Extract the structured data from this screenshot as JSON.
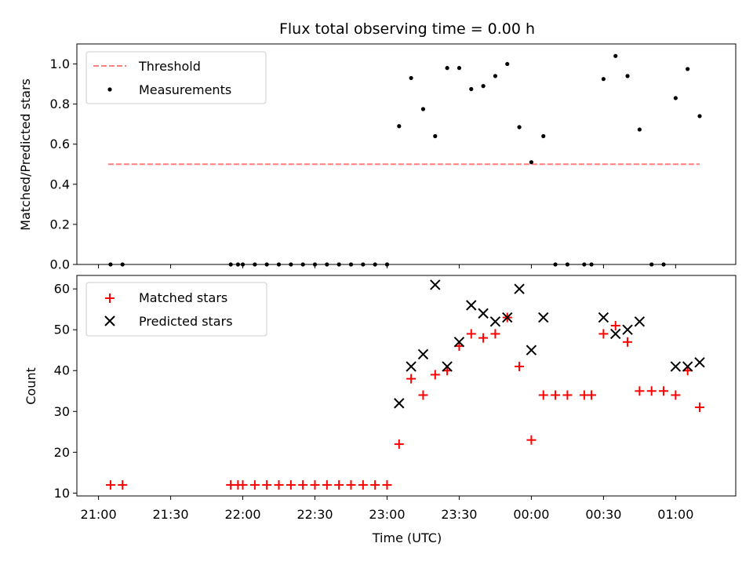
{
  "title": "Flux total observing time = 0.00 h",
  "xlabel": "Time (UTC)",
  "chart_data": [
    {
      "type": "scatter",
      "ylabel": "Matched/Predicted stars",
      "ylim": [
        0,
        1.1
      ],
      "yticks": [
        "0.0",
        "0.2",
        "0.4",
        "0.6",
        "0.8",
        "1.0"
      ],
      "xlim": [
        "20:51",
        "01:25"
      ],
      "legend": {
        "placement": "top-left",
        "entries": [
          "Threshold",
          "Measurements"
        ]
      },
      "threshold": {
        "name": "Threshold",
        "value": 0.5,
        "x_start": "21:04",
        "x_end": "01:10",
        "color": "#ff7f7f"
      },
      "series": [
        {
          "name": "Measurements",
          "color": "#000000",
          "points": [
            [
              "21:05",
              0
            ],
            [
              "21:10",
              0
            ],
            [
              "21:55",
              0
            ],
            [
              "21:58",
              0
            ],
            [
              "22:00",
              0
            ],
            [
              "22:05",
              0
            ],
            [
              "22:10",
              0
            ],
            [
              "22:15",
              0
            ],
            [
              "22:20",
              0
            ],
            [
              "22:25",
              0
            ],
            [
              "22:30",
              0
            ],
            [
              "22:35",
              0
            ],
            [
              "22:40",
              0
            ],
            [
              "22:45",
              0
            ],
            [
              "22:50",
              0
            ],
            [
              "22:55",
              0
            ],
            [
              "23:00",
              0
            ],
            [
              "23:05",
              0.69
            ],
            [
              "23:10",
              0.93
            ],
            [
              "23:15",
              0.775
            ],
            [
              "23:20",
              0.64
            ],
            [
              "23:25",
              0.98
            ],
            [
              "23:30",
              0.98
            ],
            [
              "23:35",
              0.875
            ],
            [
              "23:40",
              0.89
            ],
            [
              "23:45",
              0.94
            ],
            [
              "23:50",
              1.0
            ],
            [
              "23:55",
              0.685
            ],
            [
              "00:00",
              0.51
            ],
            [
              "00:05",
              0.64
            ],
            [
              "00:10",
              0
            ],
            [
              "00:15",
              0
            ],
            [
              "00:22",
              0
            ],
            [
              "00:25",
              0
            ],
            [
              "00:30",
              0.925
            ],
            [
              "00:35",
              1.04
            ],
            [
              "00:40",
              0.94
            ],
            [
              "00:45",
              0.673
            ],
            [
              "00:50",
              0
            ],
            [
              "00:55",
              0
            ],
            [
              "01:00",
              0.83
            ],
            [
              "01:05",
              0.975
            ],
            [
              "01:10",
              0.74
            ]
          ]
        }
      ]
    },
    {
      "type": "scatter",
      "ylabel": "Count",
      "ylim": [
        9.3,
        63.3
      ],
      "yticks": [
        "10",
        "20",
        "30",
        "40",
        "50",
        "60"
      ],
      "xticks": [
        "21:00",
        "21:30",
        "22:00",
        "22:30",
        "23:00",
        "23:30",
        "00:00",
        "00:30",
        "01:00"
      ],
      "xlim": [
        "20:51",
        "01:25"
      ],
      "legend": {
        "placement": "top-left",
        "entries": [
          "Matched stars",
          "Predicted stars"
        ]
      },
      "series": [
        {
          "name": "Matched stars",
          "marker": "plus",
          "color": "#ff0000",
          "points": [
            [
              "21:05",
              12
            ],
            [
              "21:10",
              12
            ],
            [
              "21:55",
              12
            ],
            [
              "21:58",
              12
            ],
            [
              "22:00",
              12
            ],
            [
              "22:05",
              12
            ],
            [
              "22:10",
              12
            ],
            [
              "22:15",
              12
            ],
            [
              "22:20",
              12
            ],
            [
              "22:25",
              12
            ],
            [
              "22:30",
              12
            ],
            [
              "22:35",
              12
            ],
            [
              "22:40",
              12
            ],
            [
              "22:45",
              12
            ],
            [
              "22:50",
              12
            ],
            [
              "22:55",
              12
            ],
            [
              "23:00",
              12
            ],
            [
              "23:05",
              22
            ],
            [
              "23:10",
              38
            ],
            [
              "23:15",
              34
            ],
            [
              "23:20",
              39
            ],
            [
              "23:25",
              40
            ],
            [
              "23:30",
              46
            ],
            [
              "23:35",
              49
            ],
            [
              "23:40",
              48
            ],
            [
              "23:45",
              49
            ],
            [
              "23:50",
              53
            ],
            [
              "23:55",
              41
            ],
            [
              "00:00",
              23
            ],
            [
              "00:05",
              34
            ],
            [
              "00:10",
              34
            ],
            [
              "00:15",
              34
            ],
            [
              "00:22",
              34
            ],
            [
              "00:25",
              34
            ],
            [
              "00:30",
              49
            ],
            [
              "00:35",
              51
            ],
            [
              "00:40",
              47
            ],
            [
              "00:45",
              35
            ],
            [
              "00:50",
              35
            ],
            [
              "00:55",
              35
            ],
            [
              "01:00",
              34
            ],
            [
              "01:05",
              40
            ],
            [
              "01:10",
              31
            ]
          ]
        },
        {
          "name": "Predicted stars",
          "marker": "x",
          "color": "#000000",
          "points": [
            [
              "23:05",
              32
            ],
            [
              "23:10",
              41
            ],
            [
              "23:15",
              44
            ],
            [
              "23:20",
              61
            ],
            [
              "23:25",
              41
            ],
            [
              "23:30",
              47
            ],
            [
              "23:35",
              56
            ],
            [
              "23:40",
              54
            ],
            [
              "23:45",
              52
            ],
            [
              "23:50",
              53
            ],
            [
              "23:55",
              60
            ],
            [
              "00:00",
              45
            ],
            [
              "00:05",
              53
            ],
            [
              "00:30",
              53
            ],
            [
              "00:35",
              49
            ],
            [
              "00:40",
              50
            ],
            [
              "00:45",
              52
            ],
            [
              "01:00",
              41
            ],
            [
              "01:05",
              41
            ],
            [
              "01:10",
              42
            ]
          ]
        }
      ]
    }
  ]
}
